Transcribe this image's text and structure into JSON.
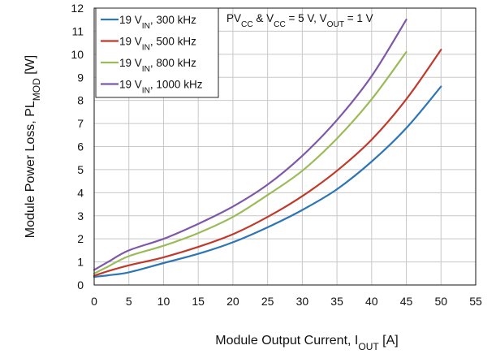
{
  "chart_data": {
    "type": "line",
    "title": "",
    "xlabel": {
      "main": "Module Output Current, I",
      "sub": "OUT",
      "tail": " [A]"
    },
    "ylabel": {
      "main": "Module Power Loss, PL",
      "sub": "MOD",
      "tail": " [W]"
    },
    "xlim": [
      0,
      55
    ],
    "ylim": [
      0,
      12
    ],
    "xticks": [
      0,
      5,
      10,
      15,
      20,
      25,
      30,
      35,
      40,
      45,
      50,
      55
    ],
    "yticks": [
      0,
      1,
      2,
      3,
      4,
      5,
      6,
      7,
      8,
      9,
      10,
      11,
      12
    ],
    "grid": true,
    "legend_position": "top-left",
    "annotation": {
      "parts": [
        {
          "t": "PV"
        },
        {
          "t": "CC",
          "sub": true
        },
        {
          "t": " & V"
        },
        {
          "t": "CC",
          "sub": true
        },
        {
          "t": " = 5 V, V"
        },
        {
          "t": "OUT",
          "sub": true
        },
        {
          "t": " = 1 V"
        }
      ]
    },
    "series": [
      {
        "name": "19 V_IN, 300 kHz",
        "label_parts": [
          {
            "t": "19 V"
          },
          {
            "t": "IN",
            "sub": true
          },
          {
            "t": ", 300 kHz"
          }
        ],
        "color": "#2e75b6",
        "x": [
          0,
          2,
          5,
          10,
          15,
          20,
          25,
          30,
          35,
          40,
          45,
          50
        ],
        "y": [
          0.35,
          0.42,
          0.55,
          0.95,
          1.35,
          1.85,
          2.5,
          3.25,
          4.15,
          5.35,
          6.8,
          8.6
        ]
      },
      {
        "name": "19 V_IN, 500 kHz",
        "label_parts": [
          {
            "t": "19 V"
          },
          {
            "t": "IN",
            "sub": true
          },
          {
            "t": ", 500 kHz"
          }
        ],
        "color": "#c0392b",
        "x": [
          0,
          2,
          5,
          10,
          15,
          20,
          25,
          30,
          35,
          40,
          45,
          50
        ],
        "y": [
          0.4,
          0.6,
          0.85,
          1.2,
          1.65,
          2.2,
          2.95,
          3.85,
          4.95,
          6.3,
          8.05,
          10.2
        ]
      },
      {
        "name": "19 V_IN, 800 kHz",
        "label_parts": [
          {
            "t": "19 V"
          },
          {
            "t": "IN",
            "sub": true
          },
          {
            "t": ", 800 kHz"
          }
        ],
        "color": "#9bbb59",
        "x": [
          0,
          2,
          5,
          10,
          15,
          20,
          25,
          30,
          35,
          40,
          45
        ],
        "y": [
          0.5,
          0.8,
          1.25,
          1.7,
          2.25,
          2.95,
          3.9,
          4.95,
          6.35,
          8.05,
          10.1
        ]
      },
      {
        "name": "19 V_IN, 1000 kHz",
        "label_parts": [
          {
            "t": "19 V"
          },
          {
            "t": "IN",
            "sub": true
          },
          {
            "t": ", 1000 kHz"
          }
        ],
        "color": "#7e57a8",
        "x": [
          0,
          2,
          5,
          10,
          15,
          20,
          25,
          30,
          35,
          40,
          45
        ],
        "y": [
          0.65,
          1.0,
          1.5,
          2.0,
          2.65,
          3.4,
          4.35,
          5.6,
          7.15,
          9.05,
          11.5
        ]
      }
    ]
  }
}
